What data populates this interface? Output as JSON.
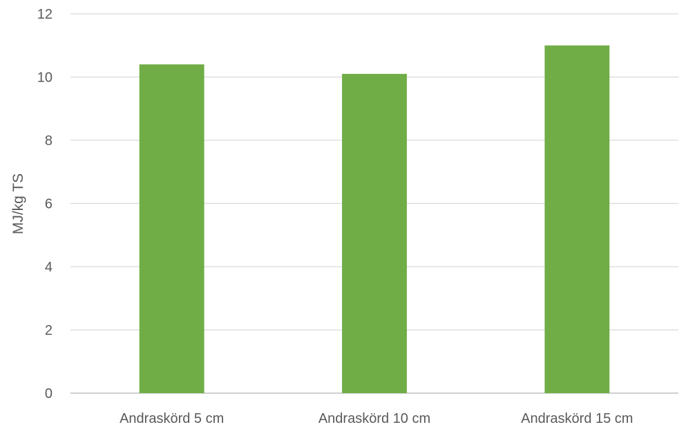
{
  "chart_data": {
    "type": "bar",
    "title": "",
    "xlabel": "",
    "ylabel": "MJ/kg TS",
    "categories": [
      "Andraskörd 5 cm",
      "Andraskörd 10 cm",
      "Andraskörd 15 cm"
    ],
    "series": [
      {
        "values": [
          10.4,
          10.1,
          11.0
        ],
        "color": "#70ad47"
      }
    ],
    "ylim": [
      0,
      12
    ],
    "yticks": [
      0,
      2,
      4,
      6,
      8,
      10,
      12
    ],
    "grid": true,
    "legend": "none"
  }
}
